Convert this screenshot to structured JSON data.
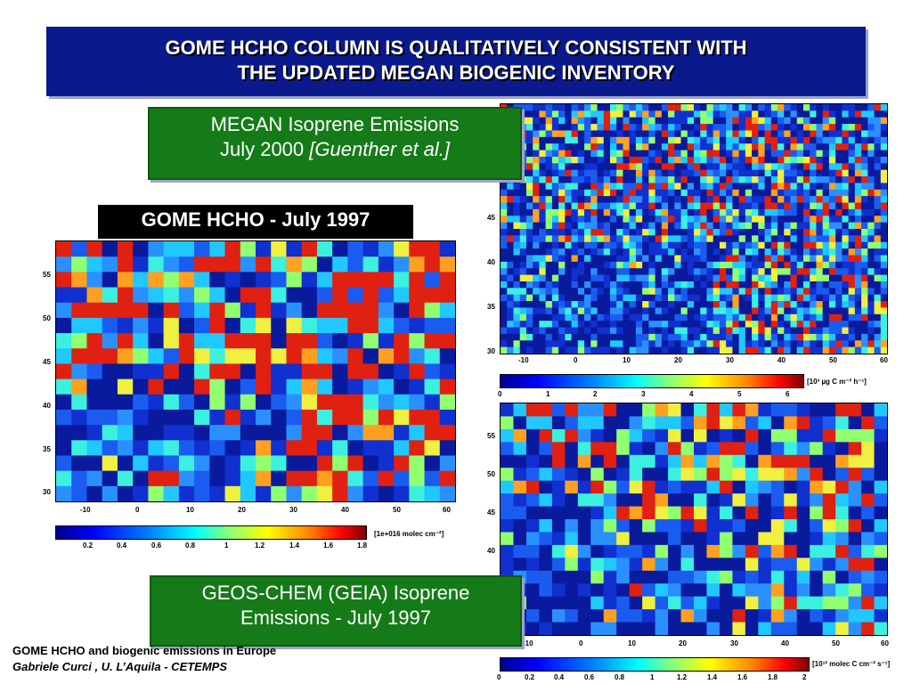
{
  "title": {
    "line1": "GOME HCHO COLUMN IS QUALITATIVELY CONSISTENT WITH",
    "line2": "THE UPDATED MEGAN BIOGENIC INVENTORY"
  },
  "panels": {
    "megan": {
      "label_line1": "MEGAN Isoprene Emissions",
      "label_line2_prefix": "July 2000 ",
      "label_line2_ref": "[Guenther et al.]",
      "lat_ticks": [
        "45",
        "40",
        "35",
        "30"
      ],
      "lon_ticks": [
        "-10",
        "0",
        "10",
        "20",
        "30",
        "40",
        "50",
        "60"
      ],
      "cbar_ticks": [
        "0",
        "1",
        "2",
        "3",
        "4",
        "5",
        "6"
      ],
      "cbar_unit": "[10³ µg C m⁻² h⁻¹]"
    },
    "gome": {
      "label": "GOME HCHO - July 1997",
      "lat_ticks": [
        "55",
        "50",
        "45",
        "40",
        "35",
        "30"
      ],
      "lon_ticks": [
        "-10",
        "0",
        "10",
        "20",
        "30",
        "40",
        "50",
        "60"
      ],
      "cbar_ticks": [
        "0.2",
        "0.4",
        "0.6",
        "0.8",
        "1",
        "1.2",
        "1.4",
        "1.6",
        "1.8"
      ],
      "cbar_unit": "[1e+016 molec cm⁻²]"
    },
    "geos": {
      "label_line1": "GEOS-CHEM (GEIA) Isoprene",
      "label_line2": "Emissions - July 1997",
      "lat_ticks": [
        "55",
        "50",
        "45",
        "40"
      ],
      "lon_ticks": [
        "-10",
        "0",
        "10",
        "20",
        "30",
        "40",
        "50",
        "60"
      ],
      "cbar_ticks": [
        "0",
        "0.2",
        "0.4",
        "0.6",
        "0.8",
        "1",
        "1.2",
        "1.4",
        "1.6",
        "1.8",
        "2"
      ],
      "cbar_unit": "[10¹² molec C cm⁻² s⁻¹]"
    }
  },
  "footer": {
    "line1": "GOME HCHO and biogenic emissions in Europe",
    "line2": "Gabriele Curci , U. L’Aquila - CETEMPS"
  }
}
